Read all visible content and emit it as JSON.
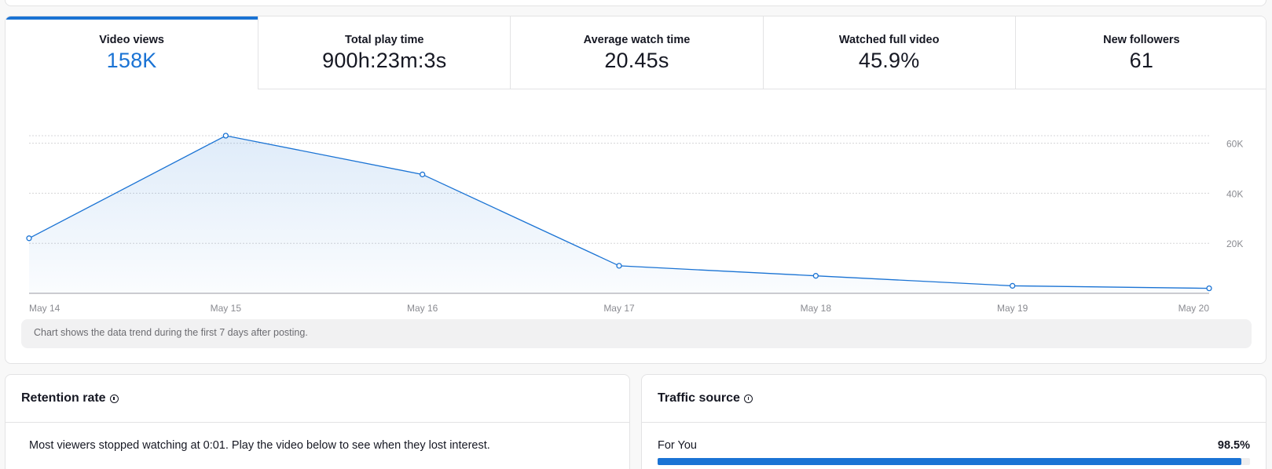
{
  "tabs": [
    {
      "label": "Video views",
      "value": "158K",
      "active": true
    },
    {
      "label": "Total play time",
      "value": "900h:23m:3s",
      "active": false
    },
    {
      "label": "Average watch time",
      "value": "20.45s",
      "active": false
    },
    {
      "label": "Watched full video",
      "value": "45.9%",
      "active": false
    },
    {
      "label": "New followers",
      "value": "61",
      "active": false
    }
  ],
  "chart_data": {
    "type": "area",
    "categories": [
      "May 14",
      "May 15",
      "May 16",
      "May 17",
      "May 18",
      "May 19",
      "May 20"
    ],
    "values": [
      22000,
      63000,
      47500,
      11000,
      7000,
      3000,
      2000
    ],
    "ylim": [
      0,
      63000
    ],
    "yticks": [
      20000,
      40000,
      60000
    ],
    "ytick_labels": [
      "20K",
      "40K",
      "60K"
    ],
    "grid": true,
    "color": "#1a73d4"
  },
  "chart_note": "Chart shows the data trend during the first 7 days after posting.",
  "retention": {
    "title": "Retention rate",
    "text": "Most viewers stopped watching at 0:01. Play the video below to see when they lost interest."
  },
  "traffic": {
    "title": "Traffic source",
    "items": [
      {
        "label": "For You",
        "value": "98.5%",
        "fraction": 0.985
      }
    ]
  }
}
